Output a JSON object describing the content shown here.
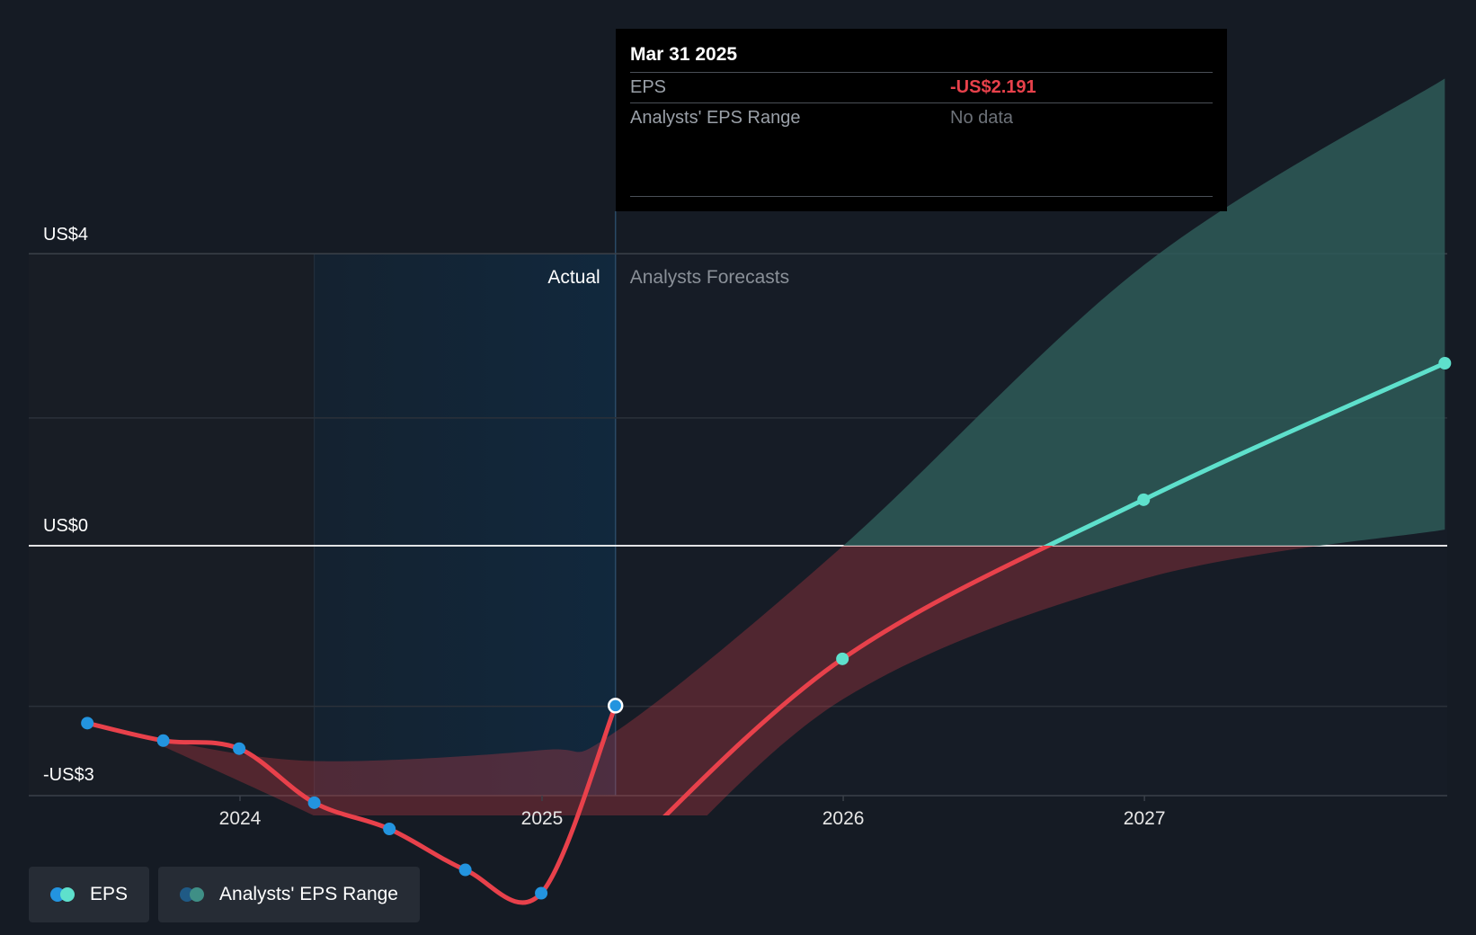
{
  "chart_data": {
    "type": "line",
    "y_axis": {
      "labels": [
        "US$4",
        "US$0",
        "-US$3"
      ],
      "ylim": [
        -3,
        4
      ]
    },
    "x_axis": {
      "tick_labels": [
        "2024",
        "2025",
        "2026",
        "2027"
      ]
    },
    "regions": {
      "actual_label": "Actual",
      "forecast_label": "Analysts Forecasts"
    },
    "series": [
      {
        "name": "EPS",
        "kind": "actual",
        "points": [
          {
            "date": "2023-06-30",
            "value": -2.43
          },
          {
            "date": "2023-09-30",
            "value": -2.67
          },
          {
            "date": "2023-12-31",
            "value": -2.78
          },
          {
            "date": "2024-03-31",
            "value": -3.52
          },
          {
            "date": "2024-06-30",
            "value": -3.88
          },
          {
            "date": "2024-09-30",
            "value": -4.44
          },
          {
            "date": "2024-12-31",
            "value": -4.76
          },
          {
            "date": "2025-03-31",
            "value": -2.191
          }
        ]
      },
      {
        "name": "EPS",
        "kind": "forecast",
        "points": [
          {
            "date": "2025-03-31",
            "value": -4.37
          },
          {
            "date": "2025-12-31",
            "value": -1.55
          },
          {
            "date": "2026-12-31",
            "value": 0.63
          },
          {
            "date": "2027-12-31",
            "value": 2.5
          }
        ]
      }
    ],
    "analyst_range": {
      "name": "Analysts' EPS Range",
      "points": [
        {
          "date": "2023-09-30",
          "low": -2.75,
          "high": -2.67
        },
        {
          "date": "2024-03-31",
          "low": -3.7,
          "high": -2.95
        },
        {
          "date": "2024-12-31",
          "low": -5.2,
          "high": -2.8
        },
        {
          "date": "2025-03-31",
          "low": -4.9,
          "high": -2.55
        },
        {
          "date": "2026-01-01",
          "low": -2.1,
          "high": 0
        },
        {
          "date": "2027-01-01",
          "low": -0.45,
          "high": 3.85
        },
        {
          "date": "2027-12-31",
          "low": 0.22,
          "high": 6.4
        }
      ]
    },
    "colors": {
      "eps_actual_line": "#e8414b",
      "eps_actual_point": "#2394df",
      "eps_forecast_point": "#5ee0cc",
      "eps_forecast_line_positive": "#5ee0cc",
      "range_negative": "#e8414b",
      "range_positive": "#2e5a58"
    }
  },
  "tooltip": {
    "date": "Mar 31 2025",
    "rows": [
      {
        "label": "EPS",
        "value": "-US$2.191"
      },
      {
        "label": "Analysts' EPS Range",
        "value": "No data"
      }
    ]
  },
  "legend": [
    {
      "label": "EPS",
      "colors": [
        "#2394df",
        "#5ee0cc"
      ]
    },
    {
      "label": "Analysts' EPS Range",
      "colors": [
        "#1f5a85",
        "#3f8f86"
      ]
    }
  ]
}
